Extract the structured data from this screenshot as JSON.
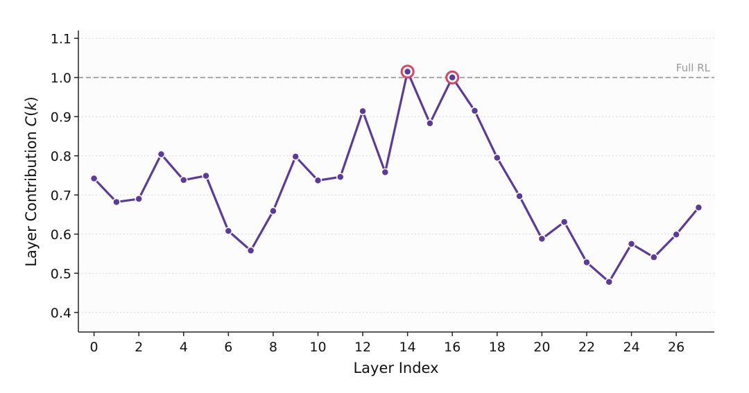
{
  "chart_data": {
    "type": "line",
    "title": "",
    "xlabel": "Layer Index",
    "ylabel_prefix": "Layer Contribution  ",
    "ylabel_var": "C",
    "ylabel_paren_open": "(",
    "ylabel_arg": "k",
    "ylabel_paren_close": ")",
    "xlim": [
      -0.7,
      27.7
    ],
    "ylim": [
      0.35,
      1.12
    ],
    "x_ticks": [
      0,
      2,
      4,
      6,
      8,
      10,
      12,
      14,
      16,
      18,
      20,
      22,
      24,
      26
    ],
    "x_tick_labels": [
      "0",
      "2",
      "4",
      "6",
      "8",
      "10",
      "12",
      "14",
      "16",
      "18",
      "20",
      "22",
      "24",
      "26"
    ],
    "y_ticks": [
      0.4,
      0.5,
      0.6,
      0.7,
      0.8,
      0.9,
      1.0,
      1.1
    ],
    "y_tick_labels": [
      "0.4",
      "0.5",
      "0.6",
      "0.7",
      "0.8",
      "0.9",
      "1.0",
      "1.1"
    ],
    "grid": "horizontal-dotted",
    "reference_line": {
      "y": 1.0,
      "label": "Full RL",
      "color": "#a0a0a0",
      "style": "dashed"
    },
    "series": [
      {
        "x": [
          0,
          1,
          2,
          3,
          4,
          5,
          6,
          7,
          8,
          9,
          10,
          11,
          12,
          13,
          14,
          15,
          16,
          17,
          18,
          19,
          20,
          21,
          22,
          23,
          24,
          25,
          26,
          27
        ],
        "values": [
          0.742,
          0.682,
          0.69,
          0.804,
          0.738,
          0.749,
          0.608,
          0.558,
          0.659,
          0.798,
          0.737,
          0.746,
          0.914,
          0.758,
          1.015,
          0.883,
          1.0,
          0.915,
          0.795,
          0.697,
          0.588,
          0.631,
          0.528,
          0.478,
          0.575,
          0.541,
          0.599,
          0.668
        ],
        "color": "#5b3a9e"
      }
    ],
    "highlighted_points": [
      14,
      16
    ],
    "highlight_color": "#d64562"
  }
}
